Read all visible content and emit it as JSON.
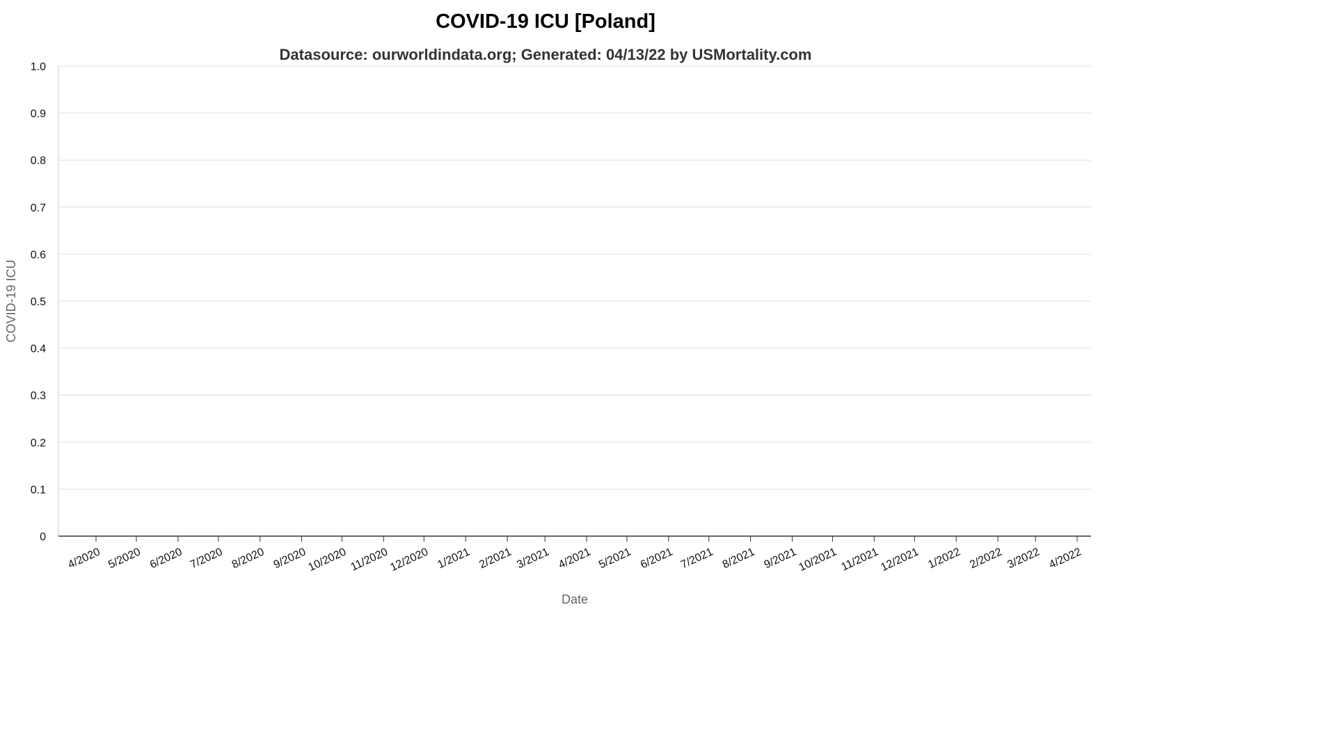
{
  "chart_data": {
    "type": "line",
    "title": "COVID-19 ICU [Poland]",
    "subtitle": "Datasource: ourworldindata.org; Generated: 04/13/22 by USMortality.com",
    "xlabel": "Date",
    "ylabel": "COVID-19 ICU",
    "ylim": [
      0,
      1.0
    ],
    "y_ticks": [
      "0",
      "0.1",
      "0.2",
      "0.3",
      "0.4",
      "0.5",
      "0.6",
      "0.7",
      "0.8",
      "0.9",
      "1.0"
    ],
    "x_ticks": [
      "4/2020",
      "5/2020",
      "6/2020",
      "7/2020",
      "8/2020",
      "9/2020",
      "10/2020",
      "11/2020",
      "12/2020",
      "1/2021",
      "2/2021",
      "3/2021",
      "4/2021",
      "5/2021",
      "6/2021",
      "7/2021",
      "8/2021",
      "9/2021",
      "10/2021",
      "11/2021",
      "12/2021",
      "1/2022",
      "2/2022",
      "3/2022",
      "4/2022"
    ],
    "grid": true,
    "series": []
  }
}
